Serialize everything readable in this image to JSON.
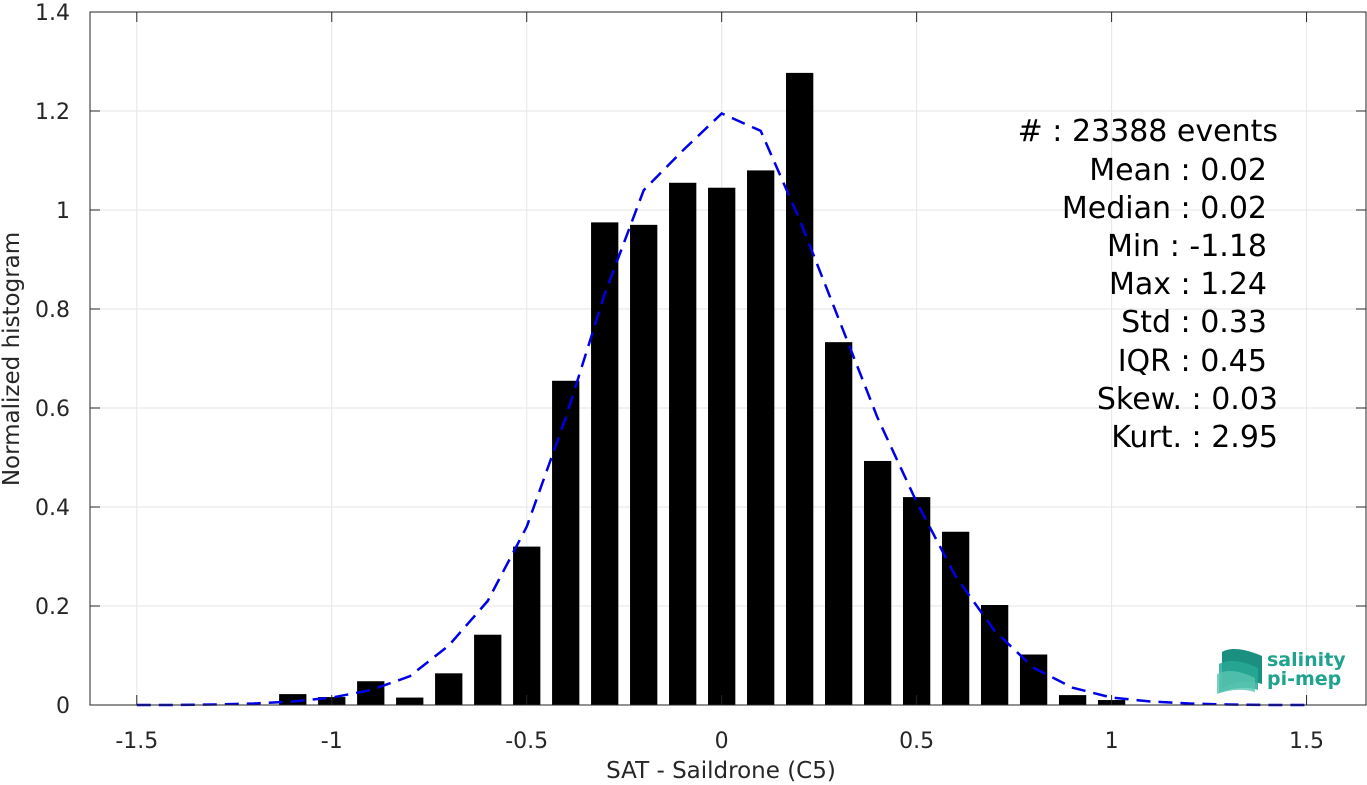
{
  "chart_data": {
    "type": "bar",
    "xlabel": "SAT - Saildrone (C5)",
    "ylabel": "Normalized histogram",
    "xlim": [
      -1.5,
      1.5
    ],
    "ylim": [
      0,
      1.4
    ],
    "xticks": [
      -1.5,
      -1,
      -0.5,
      0,
      0.5,
      1,
      1.5
    ],
    "xtick_labels": [
      "-1.5",
      "-1",
      "-0.5",
      "0",
      "0.5",
      "1",
      "1.5"
    ],
    "yticks": [
      0,
      0.2,
      0.4,
      0.6,
      0.8,
      1,
      1.2,
      1.4
    ],
    "ytick_labels": [
      "0",
      "0.2",
      "0.4",
      "0.6",
      "0.8",
      "1",
      "1.2",
      "1.4"
    ],
    "grid": true,
    "bar_width": 0.07,
    "bar_color": "#000000",
    "bins": [
      -1.1,
      -1.0,
      -0.9,
      -0.8,
      -0.7,
      -0.6,
      -0.5,
      -0.4,
      -0.3,
      -0.2,
      -0.1,
      0.0,
      0.1,
      0.2,
      0.3,
      0.4,
      0.5,
      0.6,
      0.7,
      0.8,
      0.9,
      1.0
    ],
    "values": [
      0.022,
      0.016,
      0.048,
      0.015,
      0.064,
      0.142,
      0.32,
      0.655,
      0.975,
      0.97,
      1.055,
      1.045,
      1.08,
      1.277,
      0.733,
      0.493,
      0.42,
      0.35,
      0.202,
      0.102,
      0.02,
      0.01
    ],
    "fit_curve": {
      "style": "dashed",
      "color": "#0000e6",
      "x": [
        -1.5,
        -1.4,
        -1.3,
        -1.2,
        -1.1,
        -1.0,
        -0.9,
        -0.8,
        -0.7,
        -0.6,
        -0.5,
        -0.4,
        -0.3,
        -0.2,
        -0.1,
        0.0,
        0.1,
        0.2,
        0.3,
        0.4,
        0.5,
        0.6,
        0.7,
        0.8,
        0.9,
        1.0,
        1.1,
        1.2,
        1.3,
        1.4,
        1.5
      ],
      "y": [
        0.0,
        0.0,
        0.001,
        0.003,
        0.007,
        0.015,
        0.03,
        0.058,
        0.12,
        0.21,
        0.36,
        0.58,
        0.83,
        1.04,
        1.12,
        1.195,
        1.16,
        0.98,
        0.78,
        0.58,
        0.41,
        0.26,
        0.15,
        0.075,
        0.035,
        0.015,
        0.007,
        0.003,
        0.001,
        0.0,
        0.0
      ]
    },
    "stats": [
      {
        "label": "#  : 23388 events"
      },
      {
        "label": "Mean : 0.02"
      },
      {
        "label": "Median : 0.02"
      },
      {
        "label": "Min : -1.18"
      },
      {
        "label": "Max : 1.24"
      },
      {
        "label": "Std : 0.33"
      },
      {
        "label": "IQR : 0.45"
      },
      {
        "label": "Skew. : 0.03"
      },
      {
        "label": "Kurt. : 2.95"
      }
    ]
  },
  "logo": {
    "line1": "salinity",
    "line2": "pi-mep",
    "color": "#1fa38f"
  }
}
